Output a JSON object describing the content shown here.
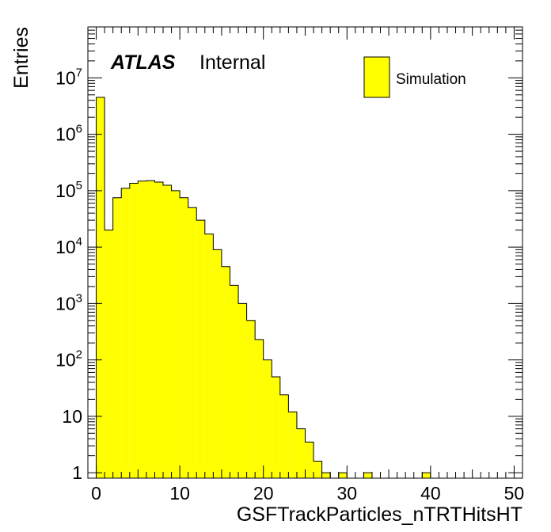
{
  "chart_data": {
    "type": "bar",
    "style": "filled-step-histogram",
    "y_scale": "log",
    "x_range": [
      -1,
      51
    ],
    "y_range": [
      0.8,
      80000000
    ],
    "bin_width": 1,
    "bin_edges_start": -1,
    "x_ticks": [
      {
        "value": 0,
        "label": "0"
      },
      {
        "value": 10,
        "label": "10"
      },
      {
        "value": 20,
        "label": "20"
      },
      {
        "value": 30,
        "label": "30"
      },
      {
        "value": 40,
        "label": "40"
      },
      {
        "value": 50,
        "label": "50"
      }
    ],
    "y_ticks": [
      {
        "value": 1,
        "base": "1",
        "exp": ""
      },
      {
        "value": 10,
        "base": "10",
        "exp": ""
      },
      {
        "value": 100,
        "base": "10",
        "exp": "2"
      },
      {
        "value": 1000,
        "base": "10",
        "exp": "3"
      },
      {
        "value": 10000,
        "base": "10",
        "exp": "4"
      },
      {
        "value": 100000,
        "base": "10",
        "exp": "5"
      },
      {
        "value": 1000000,
        "base": "10",
        "exp": "6"
      },
      {
        "value": 10000000,
        "base": "10",
        "exp": "7"
      }
    ],
    "xlabel": "GSFTrackParticles_nTRTHitsHT",
    "ylabel": "Entries",
    "atlas_label": "ATLAS",
    "atlas_sublabel": "Internal",
    "legend_position": "top-right",
    "fill_color": "#ffff00",
    "line_color": "#000000",
    "series": [
      {
        "name": "Simulation",
        "values": [
          0,
          4500000,
          20000,
          75000,
          110000,
          135000,
          148000,
          150000,
          142000,
          125000,
          100000,
          75000,
          50000,
          30000,
          17000,
          9000,
          4500,
          2100,
          1000,
          500,
          230,
          100,
          50,
          24,
          12,
          6,
          3.5,
          1.6,
          1,
          0,
          1,
          0,
          0,
          1,
          0,
          0,
          0,
          0,
          0,
          0,
          1,
          0,
          0,
          0,
          0,
          0,
          0,
          0,
          0,
          0,
          0,
          0
        ]
      }
    ]
  }
}
